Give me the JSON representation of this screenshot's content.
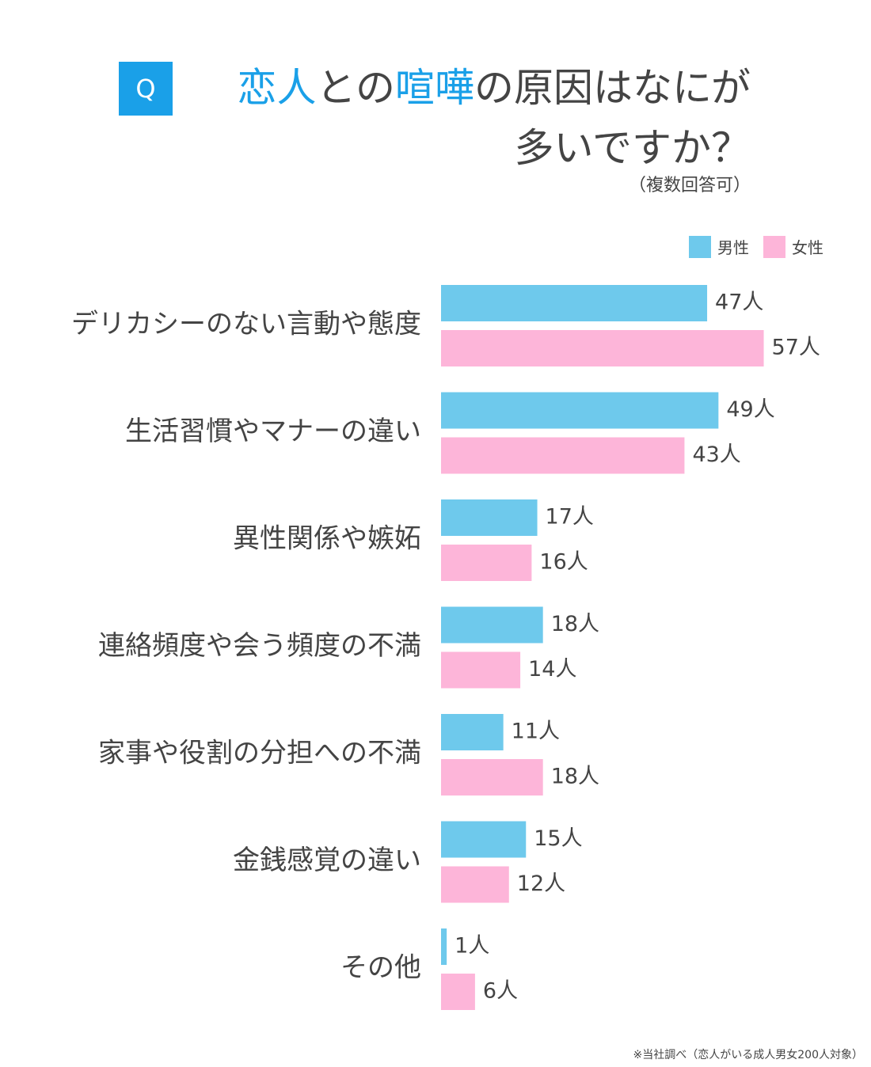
{
  "header": {
    "badge": "Q",
    "title_line1": [
      {
        "text": "恋人",
        "highlight": true
      },
      {
        "text": "との",
        "highlight": false
      },
      {
        "text": "喧嘩",
        "highlight": true
      },
      {
        "text": "の原因はなにが",
        "highlight": false
      }
    ],
    "title_line2": "多いですか？",
    "subtitle": "（複数回答可）"
  },
  "legend": {
    "male_label": "男性",
    "female_label": "女性"
  },
  "colors": {
    "accent": "#1aa0e8",
    "badge": "#1aa0e8",
    "male": "#6ec9ec",
    "female": "#fdb5d9",
    "text": "#444444"
  },
  "unit": "人",
  "chart_data": {
    "type": "bar",
    "orientation": "horizontal",
    "categories": [
      "デリカシーのない言動や態度",
      "生活習慣やマナーの違い",
      "異性関係や嫉妬",
      "連絡頻度や会う頻度の不満",
      "家事や役割の分担への不満",
      "金銭感覚の違い",
      "その他"
    ],
    "series": [
      {
        "name": "男性",
        "values": [
          47,
          49,
          17,
          18,
          11,
          15,
          1
        ]
      },
      {
        "name": "女性",
        "values": [
          57,
          43,
          16,
          14,
          18,
          12,
          6
        ]
      }
    ],
    "legend_position": "top-right",
    "grid": false
  },
  "footnote": "※当社調べ（恋人がいる成人男女200人対象）"
}
